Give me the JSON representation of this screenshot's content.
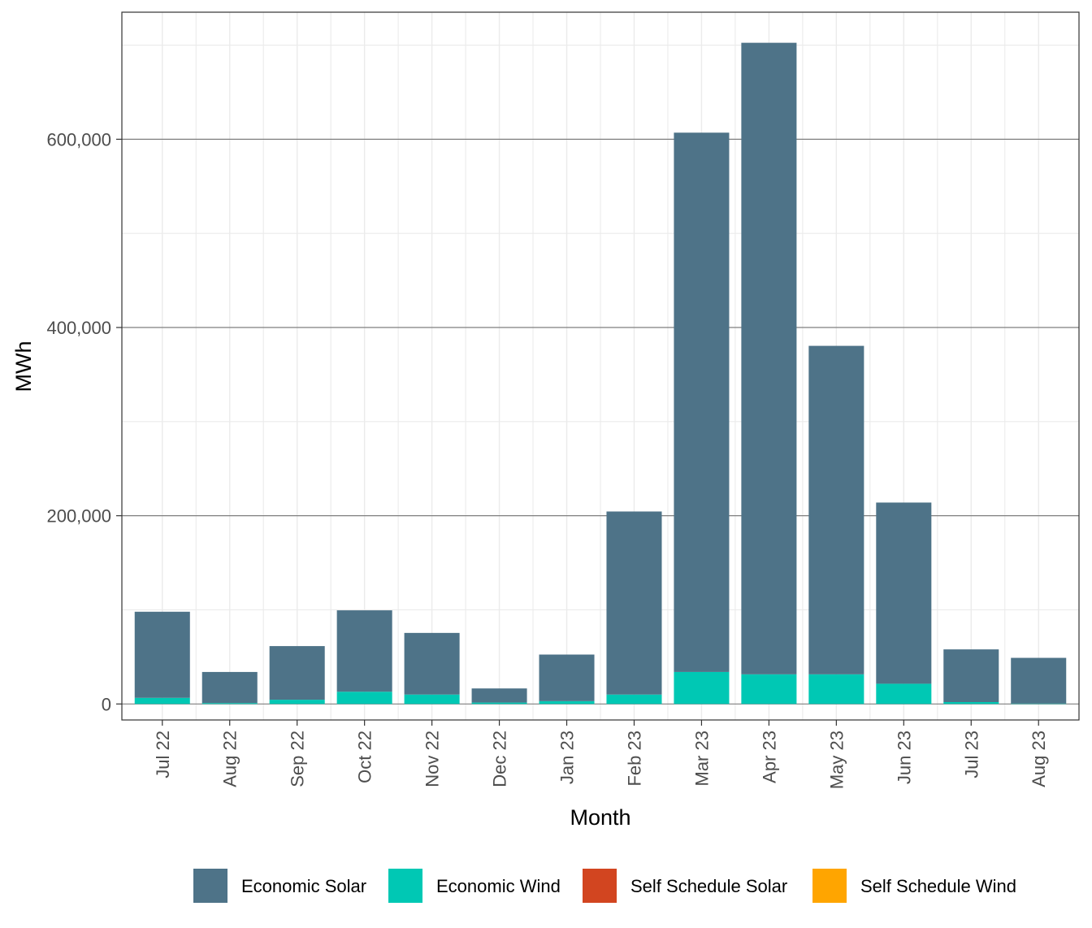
{
  "chart_data": {
    "type": "bar",
    "stacked": true,
    "xlabel": "Month",
    "ylabel": "MWh",
    "ylim": [
      -17000,
      735000
    ],
    "y_ticks": [
      {
        "value": 0,
        "label": "0"
      },
      {
        "value": 200000,
        "label": "200,000"
      },
      {
        "value": 400000,
        "label": "400,000"
      },
      {
        "value": 600000,
        "label": "600,000"
      }
    ],
    "categories": [
      "Jul 22",
      "Aug 22",
      "Sep 22",
      "Oct 22",
      "Nov 22",
      "Dec 22",
      "Jan 23",
      "Feb 23",
      "Mar 23",
      "Apr 23",
      "May 23",
      "Jun 23",
      "Jul 23",
      "Aug 23"
    ],
    "series": [
      {
        "name": "Self Schedule Wind",
        "color": "#FFA500",
        "values": [
          0,
          0,
          0,
          0,
          0,
          0,
          0,
          0,
          0,
          0,
          0,
          0,
          0,
          0
        ]
      },
      {
        "name": "Self Schedule Solar",
        "color": "#D24520",
        "values": [
          0,
          0,
          0,
          0,
          0,
          0,
          0,
          0,
          0,
          0,
          0,
          0,
          0,
          0
        ]
      },
      {
        "name": "Economic Wind",
        "color": "#00C8B4",
        "values": [
          6500,
          1000,
          4500,
          13000,
          10000,
          1500,
          3000,
          10000,
          34000,
          31500,
          31500,
          21500,
          2000,
          500
        ]
      },
      {
        "name": "Economic Solar",
        "color": "#4E7388",
        "values": [
          91500,
          33000,
          57000,
          86500,
          65500,
          15000,
          49500,
          194500,
          573000,
          671000,
          349000,
          192500,
          56000,
          48500
        ]
      }
    ],
    "legend": {
      "position": "bottom",
      "order": [
        "Economic Solar",
        "Economic Wind",
        "Self Schedule Solar",
        "Self Schedule Wind"
      ]
    },
    "grid": true,
    "theme": "bw"
  }
}
